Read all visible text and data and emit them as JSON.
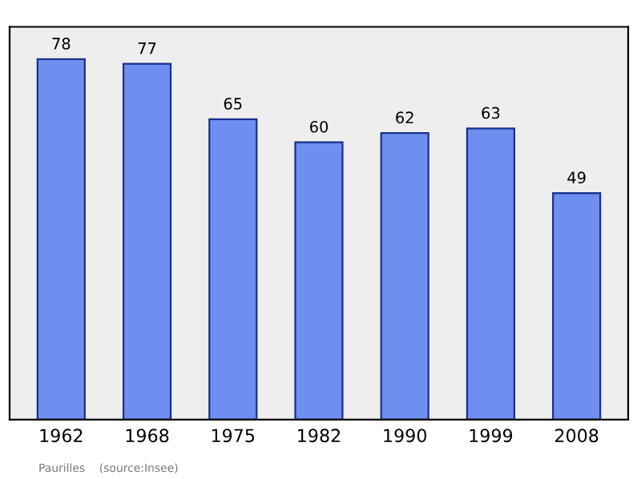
{
  "chart_data": {
    "type": "bar",
    "categories": [
      "1962",
      "1968",
      "1975",
      "1982",
      "1990",
      "1999",
      "2008"
    ],
    "values": [
      78,
      77,
      65,
      60,
      62,
      63,
      49
    ],
    "color": "#6f8ff0",
    "ylim": [
      0,
      85
    ],
    "data_labels": true,
    "grid": false,
    "legend": false,
    "annotations": [
      "Paurilles    (source:Insee)"
    ]
  }
}
